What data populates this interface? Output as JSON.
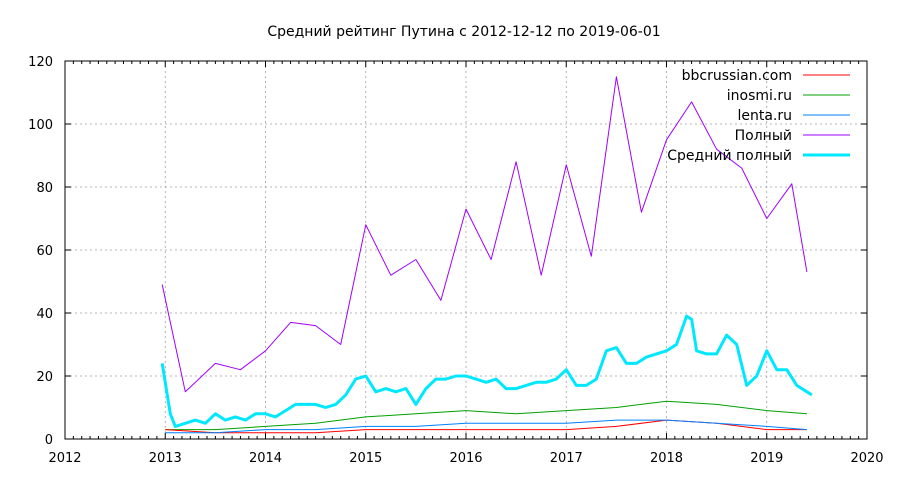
{
  "chart_data": {
    "type": "line",
    "title": "Средний рейтинг Путина с 2012-12-12  по 2019-06-01",
    "xlabel": "",
    "ylabel": "",
    "xlim": [
      2012,
      2020
    ],
    "ylim": [
      0,
      120
    ],
    "x_ticks": [
      "2012",
      "2013",
      "2014",
      "2015",
      "2016",
      "2017",
      "2018",
      "2019",
      "2020"
    ],
    "y_ticks": [
      "0",
      "20",
      "40",
      "60",
      "80",
      "100",
      "120"
    ],
    "grid": true,
    "legend_position": "top-right",
    "colors": {
      "bbcrussian": "#ff0000",
      "inosmi": "#00a000",
      "lenta": "#0080ff",
      "full": "#a000ff",
      "avg": "#00e8ff"
    },
    "series": [
      {
        "name": "bbcrussian.com",
        "x": [
          2013.0,
          2013.5,
          2014.0,
          2014.5,
          2015.0,
          2015.5,
          2016.0,
          2016.5,
          2017.0,
          2017.5,
          2018.0,
          2018.5,
          2019.0,
          2019.4
        ],
        "y": [
          3,
          2,
          2,
          2,
          3,
          3,
          3,
          3,
          3,
          4,
          6,
          5,
          3,
          3
        ]
      },
      {
        "name": "inosmi.ru",
        "x": [
          2013.0,
          2013.5,
          2014.0,
          2014.5,
          2015.0,
          2015.5,
          2016.0,
          2016.5,
          2017.0,
          2017.5,
          2018.0,
          2018.5,
          2019.0,
          2019.4
        ],
        "y": [
          3,
          3,
          4,
          5,
          7,
          8,
          9,
          8,
          9,
          10,
          12,
          11,
          9,
          8
        ]
      },
      {
        "name": "lenta.ru",
        "x": [
          2013.0,
          2013.5,
          2014.0,
          2014.5,
          2015.0,
          2015.5,
          2016.0,
          2016.5,
          2017.0,
          2017.5,
          2018.0,
          2018.5,
          2019.0,
          2019.4
        ],
        "y": [
          2,
          2,
          3,
          3,
          4,
          4,
          5,
          5,
          5,
          6,
          6,
          5,
          4,
          3
        ]
      },
      {
        "name": "Полный",
        "x": [
          2012.97,
          2013.2,
          2013.5,
          2013.75,
          2014.0,
          2014.25,
          2014.5,
          2014.75,
          2015.0,
          2015.25,
          2015.5,
          2015.75,
          2016.0,
          2016.25,
          2016.5,
          2016.75,
          2017.0,
          2017.25,
          2017.5,
          2017.75,
          2018.0,
          2018.25,
          2018.5,
          2018.75,
          2019.0,
          2019.25,
          2019.4
        ],
        "y": [
          49,
          15,
          24,
          22,
          28,
          37,
          36,
          30,
          68,
          52,
          57,
          44,
          73,
          57,
          88,
          52,
          87,
          58,
          115,
          72,
          95,
          107,
          92,
          86,
          70,
          81,
          53
        ]
      },
      {
        "name": "Средний полный",
        "x": [
          2012.97,
          2013.05,
          2013.1,
          2013.2,
          2013.3,
          2013.4,
          2013.5,
          2013.6,
          2013.7,
          2013.8,
          2013.9,
          2014.0,
          2014.1,
          2014.2,
          2014.3,
          2014.4,
          2014.5,
          2014.6,
          2014.7,
          2014.8,
          2014.9,
          2015.0,
          2015.1,
          2015.2,
          2015.3,
          2015.4,
          2015.5,
          2015.6,
          2015.7,
          2015.8,
          2015.9,
          2016.0,
          2016.1,
          2016.2,
          2016.3,
          2016.4,
          2016.5,
          2016.6,
          2016.7,
          2016.8,
          2016.9,
          2017.0,
          2017.1,
          2017.2,
          2017.3,
          2017.4,
          2017.5,
          2017.6,
          2017.7,
          2017.8,
          2017.9,
          2018.0,
          2018.1,
          2018.2,
          2018.25,
          2018.3,
          2018.4,
          2018.5,
          2018.6,
          2018.7,
          2018.8,
          2018.9,
          2019.0,
          2019.1,
          2019.2,
          2019.3,
          2019.4,
          2019.45
        ],
        "y": [
          24,
          8,
          4,
          5,
          6,
          5,
          8,
          6,
          7,
          6,
          8,
          8,
          7,
          9,
          11,
          11,
          11,
          10,
          11,
          14,
          19,
          20,
          15,
          16,
          15,
          16,
          11,
          16,
          19,
          19,
          20,
          20,
          19,
          18,
          19,
          16,
          16,
          17,
          18,
          18,
          19,
          22,
          17,
          17,
          19,
          28,
          29,
          24,
          24,
          26,
          27,
          28,
          30,
          39,
          38,
          28,
          27,
          27,
          33,
          30,
          17,
          20,
          28,
          22,
          22,
          17,
          15,
          14
        ]
      }
    ]
  }
}
